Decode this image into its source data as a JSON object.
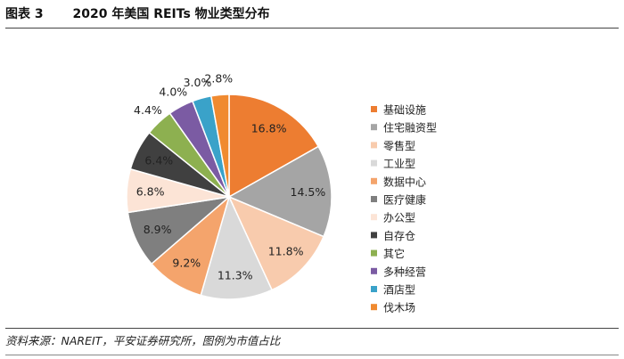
{
  "figure": {
    "label": "图表 3",
    "title": "2020 年美国 REITs 物业类型分布"
  },
  "source": "资料来源：NAREIT，平安证券研究所，图例为市值占比",
  "chart_data": {
    "type": "pie",
    "title": "2020 年美国 REITs 物业类型分布",
    "legend_position": "right",
    "slices": [
      {
        "name": "基础设施",
        "value": 16.8,
        "label": "16.8%",
        "color": "#ED7D31"
      },
      {
        "name": "住宅融资型",
        "value": 14.5,
        "label": "14.5%",
        "color": "#A5A5A5"
      },
      {
        "name": "零售型",
        "value": 11.8,
        "label": "11.8%",
        "color": "#F8CBAD"
      },
      {
        "name": "工业型",
        "value": 11.3,
        "label": "11.3%",
        "color": "#D9D9D9"
      },
      {
        "name": "数据中心",
        "value": 9.2,
        "label": "9.2%",
        "color": "#F4A46C"
      },
      {
        "name": "医疗健康",
        "value": 8.9,
        "label": "8.9%",
        "color": "#7F7F7F"
      },
      {
        "name": "办公型",
        "value": 6.8,
        "label": "6.8%",
        "color": "#FCE4D6"
      },
      {
        "name": "自存仓",
        "value": 6.4,
        "label": "6.4%",
        "color": "#404040"
      },
      {
        "name": "其它",
        "value": 4.4,
        "label": "4.4%",
        "color": "#8DB050"
      },
      {
        "name": "多种经营",
        "value": 4.0,
        "label": "4.0%",
        "color": "#7B5BA3"
      },
      {
        "name": "酒店型",
        "value": 3.0,
        "label": "3.0%",
        "color": "#3AA2C9"
      },
      {
        "name": "伐木场",
        "value": 2.8,
        "label": "2.8%",
        "color": "#F08A30"
      }
    ]
  }
}
